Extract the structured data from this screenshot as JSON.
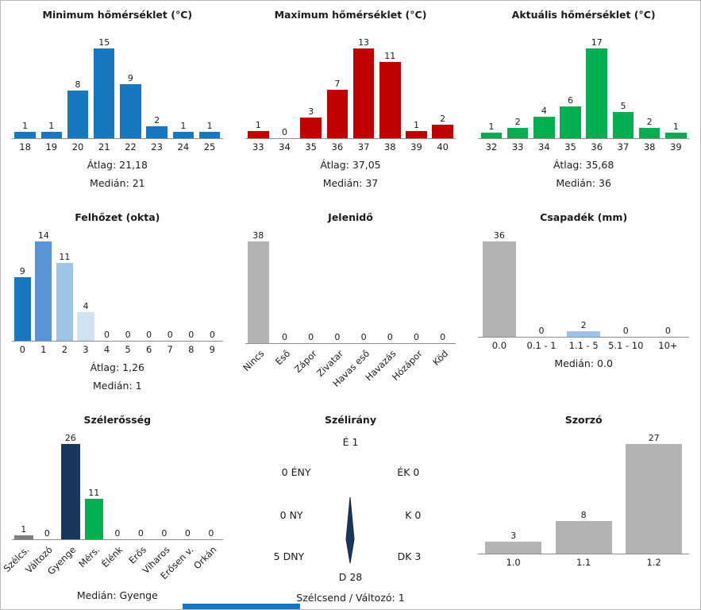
{
  "page": {
    "bottom_strip_color": "#1878bf",
    "border_color": "#b9b9b9"
  },
  "chart_data": [
    {
      "type": "bar",
      "title": "Minimum hőmérséklet (°C)",
      "categories": [
        "18",
        "19",
        "20",
        "21",
        "22",
        "23",
        "24",
        "25"
      ],
      "values": [
        1,
        1,
        8,
        15,
        9,
        2,
        1,
        1
      ],
      "bar_color": "#1878bf",
      "rotated_labels": false,
      "stats": [
        "Átlag: 21,18",
        "Medián: 21"
      ]
    },
    {
      "type": "bar",
      "title": "Maximum hőmérséklet (°C)",
      "categories": [
        "33",
        "34",
        "35",
        "36",
        "37",
        "38",
        "39",
        "40"
      ],
      "values": [
        1,
        0,
        3,
        7,
        13,
        11,
        1,
        2
      ],
      "bar_color": "#c00000",
      "rotated_labels": false,
      "stats": [
        "Átlag: 37,05",
        "Medián: 37"
      ]
    },
    {
      "type": "bar",
      "title": "Aktuális hőmérséklet (°C)",
      "categories": [
        "32",
        "33",
        "34",
        "35",
        "36",
        "37",
        "38",
        "39"
      ],
      "values": [
        1,
        2,
        4,
        6,
        17,
        5,
        2,
        1
      ],
      "bar_color": "#00b050",
      "rotated_labels": false,
      "stats": [
        "Átlag: 35,68",
        "Medián: 36"
      ]
    },
    {
      "type": "bar",
      "title": "Felhőzet (okta)",
      "categories": [
        "0",
        "1",
        "2",
        "3",
        "4",
        "5",
        "6",
        "7",
        "8",
        "9"
      ],
      "values": [
        9,
        14,
        11,
        4,
        0,
        0,
        0,
        0,
        0,
        0
      ],
      "bar_color": "#b3b3b3",
      "bar_colors": [
        "#1878bf",
        "#5b93d6",
        "#9ec4e8",
        "#d0e1f2",
        "#b3b3b3",
        "#b3b3b3",
        "#b3b3b3",
        "#b3b3b3",
        "#b3b3b3",
        "#b3b3b3"
      ],
      "rotated_labels": false,
      "stats": [
        "Átlag: 1,26",
        "Medián: 1"
      ]
    },
    {
      "type": "bar",
      "title": "Jelenidő",
      "categories": [
        "Nincs",
        "Eső",
        "Zápor",
        "Zivatar",
        "Havas eső",
        "Havazás",
        "Hózápor",
        "Köd"
      ],
      "values": [
        38,
        0,
        0,
        0,
        0,
        0,
        0,
        0
      ],
      "bar_color": "#b3b3b3",
      "rotated_labels": true,
      "stats": []
    },
    {
      "type": "bar",
      "title": "Csapadék (mm)",
      "categories": [
        "0.0",
        "0.1 - 1",
        "1.1 - 5",
        "5.1 - 10",
        "10+"
      ],
      "values": [
        36,
        0,
        2,
        0,
        0
      ],
      "bar_color": "#b3b3b3",
      "bar_colors": [
        "#b3b3b3",
        "#b3b3b3",
        "#9dc3e6",
        "#b3b3b3",
        "#b3b3b3"
      ],
      "rotated_labels": false,
      "stats": [
        "Medián: 0.0"
      ]
    },
    {
      "type": "bar",
      "title": "Szélerősség",
      "categories": [
        "Szélcs.",
        "Változó",
        "Gyenge",
        "Mérs.",
        "Élénk",
        "Erős",
        "Viharos",
        "Erősen v.",
        "Orkán"
      ],
      "values": [
        1,
        0,
        26,
        11,
        0,
        0,
        0,
        0,
        0
      ],
      "bar_color": "#b3b3b3",
      "bar_colors": [
        "#7f7f7f",
        "#b3b3b3",
        "#17375e",
        "#00b050",
        "#b3b3b3",
        "#b3b3b3",
        "#b3b3b3",
        "#b3b3b3",
        "#b3b3b3"
      ],
      "rotated_labels": true,
      "stats": [
        "Medián: Gyenge"
      ]
    },
    {
      "type": "compass",
      "title": "Szélirány",
      "needle_color": "#17375e",
      "needle_points_to": "D",
      "directions": [
        {
          "dir": "É",
          "value": 1,
          "text": "É 1"
        },
        {
          "dir": "ÉK",
          "value": 0,
          "text": "ÉK 0"
        },
        {
          "dir": "K",
          "value": 0,
          "text": "K 0"
        },
        {
          "dir": "DK",
          "value": 3,
          "text": "DK 3"
        },
        {
          "dir": "D",
          "value": 28,
          "text": "D 28"
        },
        {
          "dir": "DNY",
          "value": 5,
          "text": "5 DNY"
        },
        {
          "dir": "NY",
          "value": 0,
          "text": "0 NY"
        },
        {
          "dir": "ÉNY",
          "value": 0,
          "text": "0 ÉNY"
        }
      ],
      "footer": "Szélcsend / Változó: 1"
    },
    {
      "type": "bar",
      "title": "Szorzó",
      "categories": [
        "1.0",
        "1.1",
        "1.2"
      ],
      "values": [
        3,
        8,
        27
      ],
      "bar_color": "#b3b3b3",
      "rotated_labels": false,
      "stats": []
    }
  ]
}
